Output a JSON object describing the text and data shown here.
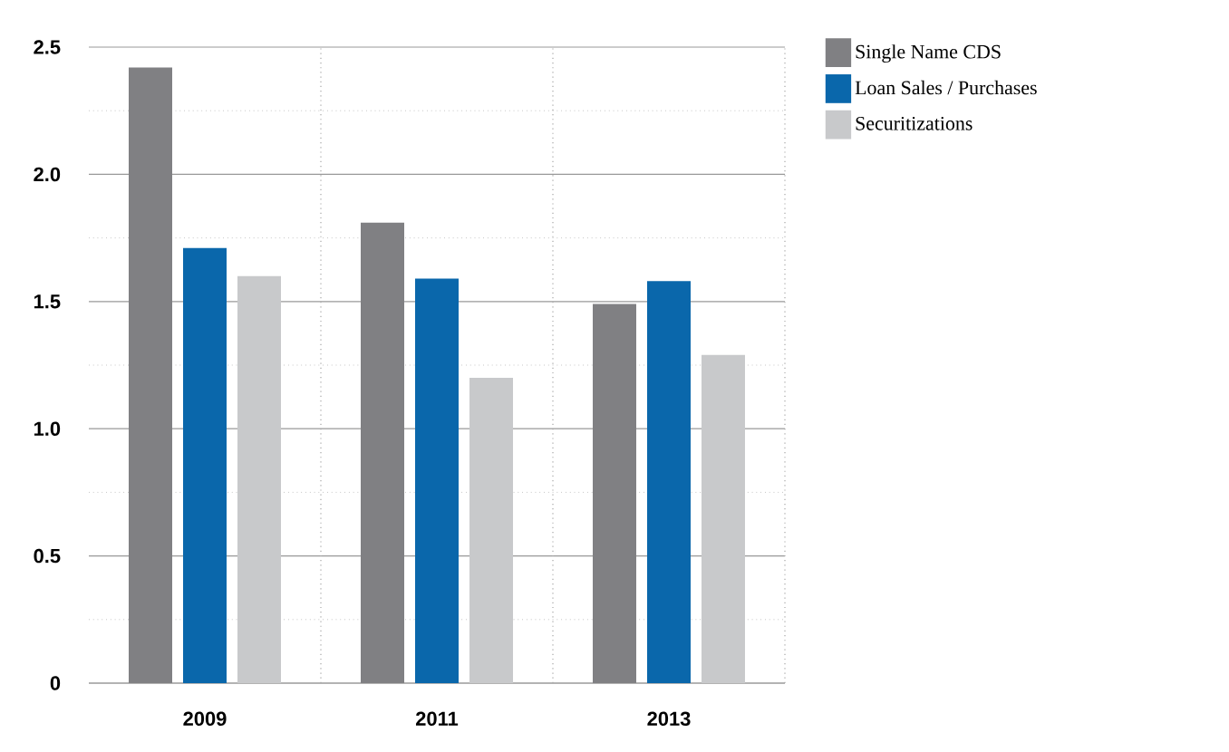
{
  "chart_data": {
    "type": "bar",
    "categories": [
      "2009",
      "2011",
      "2013"
    ],
    "series": [
      {
        "name": "Single Name CDS",
        "color": "#808083",
        "values": [
          2.42,
          1.81,
          1.49
        ]
      },
      {
        "name": "Loan Sales / Purchases",
        "color": "#0a67ab",
        "values": [
          1.71,
          1.59,
          1.58
        ]
      },
      {
        "name": "Securitizations",
        "color": "#c8c9cb",
        "values": [
          1.6,
          1.2,
          1.29
        ]
      }
    ],
    "ylim": [
      0,
      2.5
    ],
    "yticks": [
      0,
      0.5,
      {
        "value": 1,
        "label": "1.0"
      },
      1.5,
      {
        "value": 2,
        "label": "2.0"
      },
      2.5
    ],
    "grid": true,
    "legend": "top right"
  }
}
